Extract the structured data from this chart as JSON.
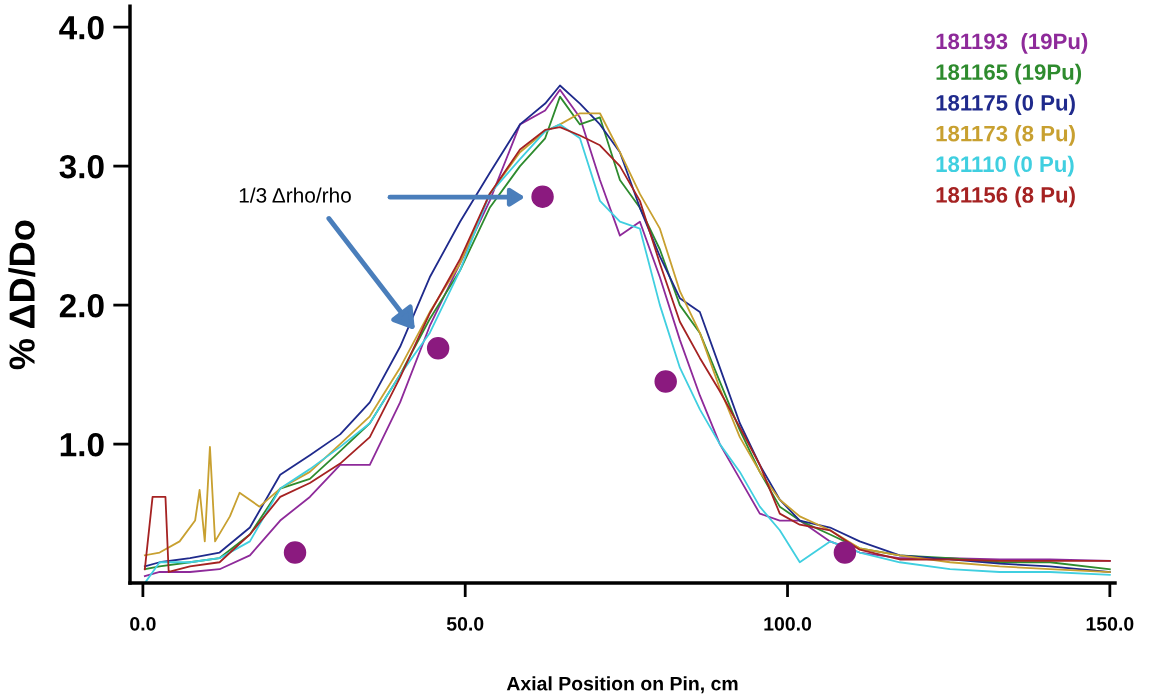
{
  "chart_data": {
    "type": "line",
    "xlabel": "Axial Position on Pin, cm",
    "ylabel": "% ΔD/Do",
    "xlim": [
      -2,
      150.8
    ],
    "ylim": [
      0,
      4.15
    ],
    "xticks": [
      {
        "value": 0,
        "label": "0.0"
      },
      {
        "value": 50,
        "label": "50.0"
      },
      {
        "value": 100,
        "label": "100.0"
      },
      {
        "value": 150,
        "label": "150.0"
      }
    ],
    "yticks": [
      {
        "value": 1,
        "label": "1.0"
      },
      {
        "value": 2,
        "label": "2.0"
      },
      {
        "value": 3,
        "label": "3.0"
      },
      {
        "value": 4,
        "label": "4.0"
      }
    ],
    "grid": false,
    "legend": "top right",
    "marker": "none",
    "line_style": "solid",
    "x": [
      0.3,
      2.6,
      7.3,
      11.9,
      16.6,
      21.3,
      25.9,
      30.6,
      35.2,
      39.9,
      44.5,
      49.2,
      53.8,
      58.5,
      62.4,
      64.7,
      67.8,
      70.9,
      74.0,
      77.1,
      80.2,
      83.3,
      86.4,
      89.5,
      92.6,
      95.7,
      98.8,
      101.9,
      106.6,
      111.2,
      117.4,
      125.2,
      132.9,
      140.7,
      150.0
    ],
    "series": [
      {
        "name": "181193  (19Pu)",
        "color": "#8e2a9a",
        "values": [
          0.05,
          0.08,
          0.08,
          0.1,
          0.2,
          0.45,
          0.62,
          0.85,
          0.85,
          1.3,
          1.85,
          2.3,
          2.75,
          3.3,
          3.4,
          3.55,
          3.35,
          2.9,
          2.5,
          2.6,
          2.2,
          1.75,
          1.35,
          1.0,
          0.75,
          0.5,
          0.45,
          0.45,
          0.3,
          0.22,
          0.18,
          0.18,
          0.17,
          0.17,
          0.16
        ]
      },
      {
        "name": "181165 (19Pu)",
        "color": "#2e8b2e",
        "values": [
          0.1,
          0.12,
          0.15,
          0.18,
          0.35,
          0.68,
          0.75,
          0.95,
          1.15,
          1.5,
          1.9,
          2.25,
          2.7,
          3.0,
          3.2,
          3.5,
          3.3,
          3.35,
          2.9,
          2.7,
          2.4,
          2.0,
          1.8,
          1.45,
          1.1,
          0.8,
          0.55,
          0.45,
          0.35,
          0.25,
          0.2,
          0.18,
          0.15,
          0.15,
          0.1
        ]
      },
      {
        "name": "181175 (0 Pu)",
        "color": "#1f2a8c",
        "values": [
          0.12,
          0.15,
          0.18,
          0.22,
          0.4,
          0.78,
          0.92,
          1.07,
          1.3,
          1.7,
          2.2,
          2.6,
          2.95,
          3.3,
          3.45,
          3.58,
          3.45,
          3.3,
          3.1,
          2.7,
          2.35,
          2.05,
          1.95,
          1.55,
          1.15,
          0.85,
          0.6,
          0.45,
          0.4,
          0.3,
          0.2,
          0.17,
          0.14,
          0.12,
          0.08
        ]
      },
      {
        "name": "181173 (8 Pu)",
        "color": "#c8a030",
        "x": [
          0.3,
          2.6,
          5.7,
          8.1,
          8.8,
          9.6,
          10.4,
          11.2,
          13.5,
          15.0,
          18.1,
          21.3,
          25.9,
          30.6,
          35.2,
          39.9,
          44.5,
          49.2,
          53.8,
          58.5,
          62.4,
          64.7,
          67.8,
          70.9,
          74.0,
          77.1,
          80.2,
          83.3,
          86.4,
          89.5,
          92.6,
          95.7,
          98.8,
          101.9,
          106.6,
          111.2,
          117.4,
          125.2,
          132.9,
          140.7,
          150.0
        ],
        "values": [
          0.2,
          0.22,
          0.3,
          0.45,
          0.67,
          0.3,
          0.98,
          0.3,
          0.48,
          0.65,
          0.55,
          0.68,
          0.8,
          1.0,
          1.2,
          1.55,
          1.95,
          2.3,
          2.8,
          3.1,
          3.25,
          3.3,
          3.38,
          3.38,
          3.1,
          2.8,
          2.55,
          2.1,
          1.8,
          1.4,
          1.05,
          0.8,
          0.6,
          0.48,
          0.38,
          0.25,
          0.2,
          0.15,
          0.12,
          0.1,
          0.08
        ]
      },
      {
        "name": "181110 (0 Pu)",
        "color": "#40cfe0",
        "values": [
          0.0,
          0.15,
          0.15,
          0.18,
          0.3,
          0.68,
          0.82,
          0.98,
          1.15,
          1.5,
          1.8,
          2.25,
          2.8,
          3.05,
          3.25,
          3.3,
          3.2,
          2.75,
          2.6,
          2.55,
          2.0,
          1.55,
          1.25,
          1.0,
          0.8,
          0.55,
          0.38,
          0.15,
          0.3,
          0.22,
          0.15,
          0.1,
          0.08,
          0.08,
          0.06
        ]
      },
      {
        "name": "181156 (8 Pu)",
        "color": "#a52222",
        "x": [
          0.3,
          1.5,
          3.5,
          4.0,
          7.3,
          11.9,
          16.6,
          21.3,
          25.9,
          30.6,
          35.2,
          39.9,
          44.5,
          49.2,
          53.8,
          58.5,
          62.4,
          64.7,
          67.8,
          70.9,
          74.0,
          77.1,
          80.2,
          83.3,
          86.4,
          89.5,
          92.6,
          95.7,
          98.8,
          101.9,
          106.6,
          111.2,
          117.4,
          125.2,
          132.9,
          140.7,
          150.0
        ],
        "values": [
          0.1,
          0.62,
          0.62,
          0.08,
          0.12,
          0.15,
          0.35,
          0.62,
          0.72,
          0.86,
          1.05,
          1.48,
          1.94,
          2.33,
          2.8,
          3.12,
          3.26,
          3.28,
          3.22,
          3.15,
          3.0,
          2.75,
          2.3,
          1.88,
          1.62,
          1.38,
          1.12,
          0.85,
          0.5,
          0.42,
          0.38,
          0.24,
          0.17,
          0.17,
          0.16,
          0.16,
          0.16
        ]
      },
      {
        "type": "scatter",
        "marker": "circle",
        "color": "#8b1a7f",
        "x": [
          23.6,
          45.8,
          62.0,
          81.1,
          108.9
        ],
        "values": [
          0.22,
          1.69,
          2.78,
          1.45,
          0.22
        ]
      }
    ],
    "annotations": [
      {
        "text": "1/3 Δrho/rho",
        "x": 42.2,
        "y": 1.82
      }
    ]
  }
}
